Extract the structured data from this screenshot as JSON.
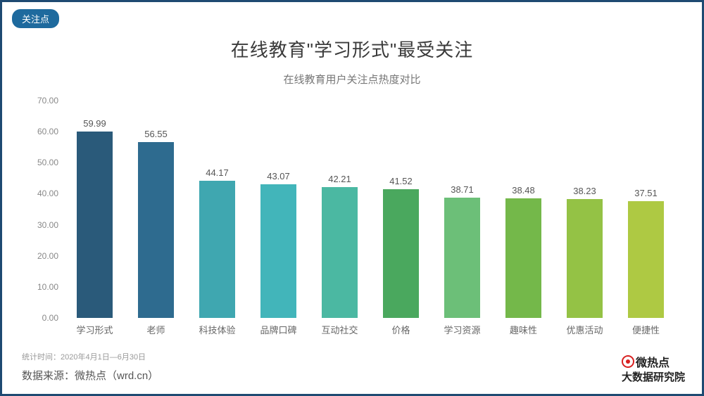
{
  "tag": "关注点",
  "title": "在线教育\"学习形式\"最受关注",
  "subtitle": "在线教育用户关注点热度对比",
  "chart": {
    "type": "bar",
    "ylim": [
      0,
      70
    ],
    "ytick_step": 10,
    "y_tick_format": "0.00",
    "categories": [
      "学习形式",
      "老师",
      "科技体验",
      "品牌口碑",
      "互动社交",
      "价格",
      "学习资源",
      "趣味性",
      "优惠活动",
      "便捷性"
    ],
    "values": [
      59.99,
      56.55,
      44.17,
      43.07,
      42.21,
      41.52,
      38.71,
      38.48,
      38.23,
      37.51
    ],
    "bar_colors": [
      "#2a5a7a",
      "#2e6b8f",
      "#3fa7b0",
      "#42b5ba",
      "#4bb8a2",
      "#4aa85e",
      "#6cbf78",
      "#74b84a",
      "#94c245",
      "#aec943"
    ],
    "value_fontsize": 13,
    "label_fontsize": 13,
    "axis_color": "#888",
    "bar_width": 0.58,
    "background_color": "#ffffff"
  },
  "footer": {
    "stat_time": "统计时间：2020年4月1日—6月30日",
    "source": "数据来源：微热点（wrd.cn）"
  },
  "logo": {
    "line1": "微热点",
    "line2": "大数据研究院",
    "accent_color": "#d82020"
  },
  "border_color": "#1e4a72"
}
